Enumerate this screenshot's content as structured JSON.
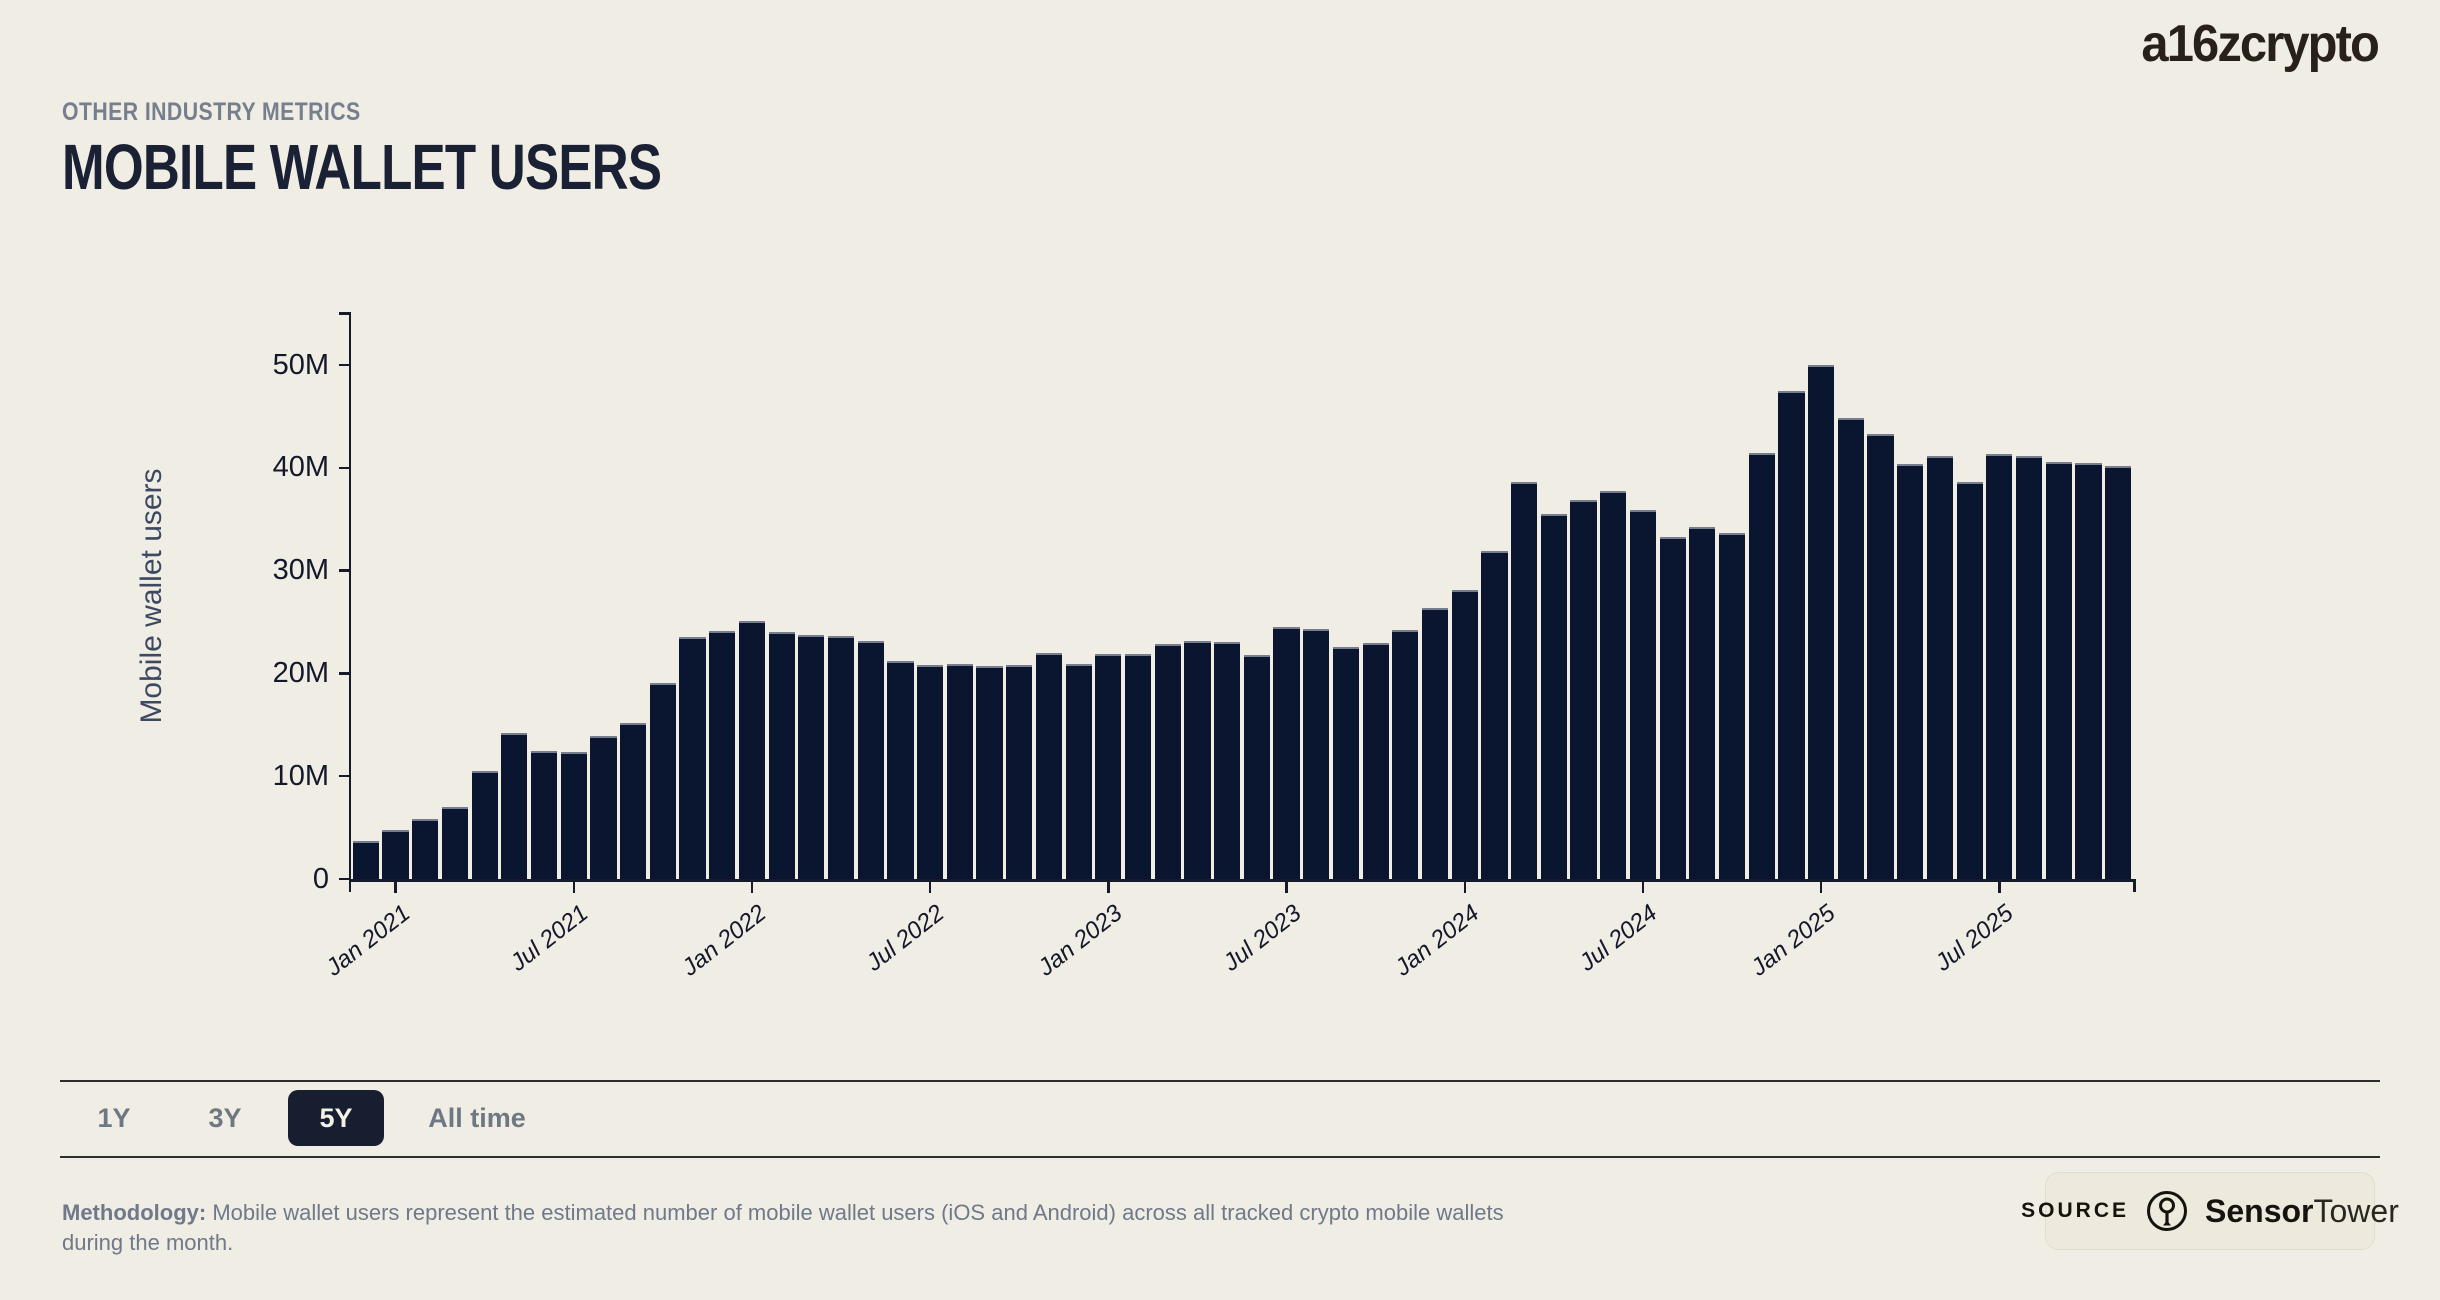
{
  "page": {
    "background": "#F0EDE4"
  },
  "logo": {
    "text": "a16zcrypto"
  },
  "header": {
    "eyebrow": "OTHER INDUSTRY METRICS",
    "title": "MOBILE WALLET USERS"
  },
  "chart_data": {
    "type": "bar",
    "title": "Mobile wallet users",
    "xlabel": "",
    "ylabel": "Mobile wallet users",
    "unit": "millions",
    "ylim": [
      0,
      55
    ],
    "grid": false,
    "bar_color": "#0A1530",
    "categories": [
      "Dec 2020",
      "Jan 2021",
      "Feb 2021",
      "Mar 2021",
      "Apr 2021",
      "May 2021",
      "Jun 2021",
      "Jul 2021",
      "Aug 2021",
      "Sep 2021",
      "Oct 2021",
      "Nov 2021",
      "Dec 2021",
      "Jan 2022",
      "Feb 2022",
      "Mar 2022",
      "Apr 2022",
      "May 2022",
      "Jun 2022",
      "Jul 2022",
      "Aug 2022",
      "Sep 2022",
      "Oct 2022",
      "Nov 2022",
      "Dec 2022",
      "Jan 2023",
      "Feb 2023",
      "Mar 2023",
      "Apr 2023",
      "May 2023",
      "Jun 2023",
      "Jul 2023",
      "Aug 2023",
      "Sep 2023",
      "Oct 2023",
      "Nov 2023",
      "Dec 2023",
      "Jan 2024",
      "Feb 2024",
      "Mar 2024",
      "Apr 2024",
      "May 2024",
      "Jun 2024",
      "Jul 2024",
      "Aug 2024",
      "Sep 2024",
      "Oct 2024",
      "Nov 2024",
      "Dec 2024",
      "Jan 2025",
      "Feb 2025",
      "Mar 2025",
      "Apr 2025",
      "May 2025",
      "Jun 2025",
      "Jul 2025",
      "Aug 2025",
      "Sep 2025",
      "Oct 2025",
      "Nov 2025"
    ],
    "values": [
      3.7,
      4.8,
      5.8,
      7.0,
      10.5,
      14.2,
      12.5,
      12.4,
      13.9,
      15.2,
      19.1,
      23.5,
      24.1,
      25.1,
      24.0,
      23.7,
      23.6,
      23.2,
      21.2,
      20.8,
      20.9,
      20.7,
      20.8,
      22.0,
      20.9,
      21.9,
      21.9,
      22.9,
      23.2,
      23.1,
      21.8,
      24.5,
      24.3,
      22.6,
      23.0,
      24.2,
      26.4,
      28.1,
      31.9,
      38.6,
      35.5,
      36.9,
      37.7,
      35.9,
      33.3,
      34.2,
      33.7,
      41.4,
      47.5,
      50.0,
      44.8,
      43.3,
      40.4,
      41.1,
      38.6,
      41.3,
      41.1,
      40.6,
      40.5,
      40.2
    ],
    "y_ticks": [
      {
        "value": 0,
        "label": "0"
      },
      {
        "value": 10,
        "label": "10M"
      },
      {
        "value": 20,
        "label": "20M"
      },
      {
        "value": 30,
        "label": "30M"
      },
      {
        "value": 40,
        "label": "40M"
      },
      {
        "value": 50,
        "label": "50M"
      }
    ],
    "x_ticks": [
      {
        "index": 1,
        "label": "Jan 2021"
      },
      {
        "index": 7,
        "label": "Jul 2021"
      },
      {
        "index": 13,
        "label": "Jan 2022"
      },
      {
        "index": 19,
        "label": "Jul 2022"
      },
      {
        "index": 25,
        "label": "Jan 2023"
      },
      {
        "index": 31,
        "label": "Jul 2023"
      },
      {
        "index": 37,
        "label": "Jan 2024"
      },
      {
        "index": 43,
        "label": "Jul 2024"
      },
      {
        "index": 49,
        "label": "Jan 2025"
      },
      {
        "index": 55,
        "label": "Jul 2025"
      }
    ],
    "legend": null
  },
  "controls": {
    "ranges": [
      {
        "label": "1Y",
        "selected": false
      },
      {
        "label": "3Y",
        "selected": false
      },
      {
        "label": "5Y",
        "selected": true
      },
      {
        "label": "All time",
        "selected": false
      }
    ],
    "selected_color": "#171E30",
    "selected_text_color": "#F4F1E7"
  },
  "footer": {
    "methodology_label": "Methodology:",
    "methodology_text": "Mobile wallet users represent the estimated number of mobile wallet users (iOS and Android) across all tracked crypto mobile wallets during the month.",
    "source_label": "SOURCE",
    "source_brand_bold": "Sensor",
    "source_brand_regular": "Tower",
    "source_icon": "sensor-tower-icon"
  }
}
